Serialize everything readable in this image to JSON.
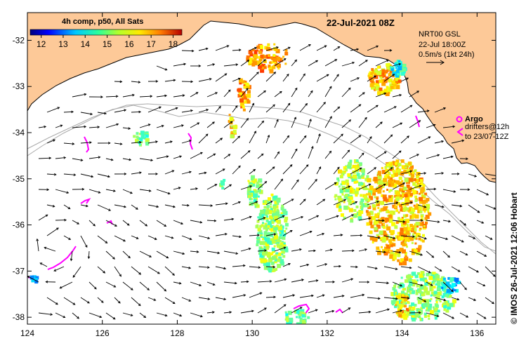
{
  "map": {
    "title": "22-Jul-2021 08Z",
    "credit": "© IMOS 26-Jul-2021 12:06 Hobart",
    "colorbar": {
      "title": "4h comp, p50, All Sats",
      "ticks": [
        "12",
        "13",
        "14",
        "15",
        "16",
        "17",
        "18"
      ],
      "min": 11.5,
      "max": 18.4,
      "colormap": "jet"
    },
    "info_box": {
      "line1": "NRT00 GSL",
      "line2": "22-Jul 18:00Z",
      "line3": "0.5m/s (1kt 24h)"
    },
    "legend": {
      "argo_label": "Argo",
      "drifters_line1": "drifters@12h",
      "drifters_line2": "to 23/07-12Z",
      "argo_color": "#ff00ff",
      "drifter_color": "#cc33cc"
    },
    "x_ticks": [
      "124",
      "126",
      "128",
      "130",
      "132",
      "134",
      "136"
    ],
    "y_ticks": [
      "-32",
      "-33",
      "-34",
      "-35",
      "-36",
      "-37",
      "-38"
    ],
    "lon_range": [
      124,
      136.5
    ],
    "lat_range": [
      -38.15,
      -31.4
    ],
    "colors": {
      "land": "#fdc998",
      "sea": "#ffffff",
      "arrows": "#000000",
      "bathymetry": "#aaaaaa"
    }
  }
}
